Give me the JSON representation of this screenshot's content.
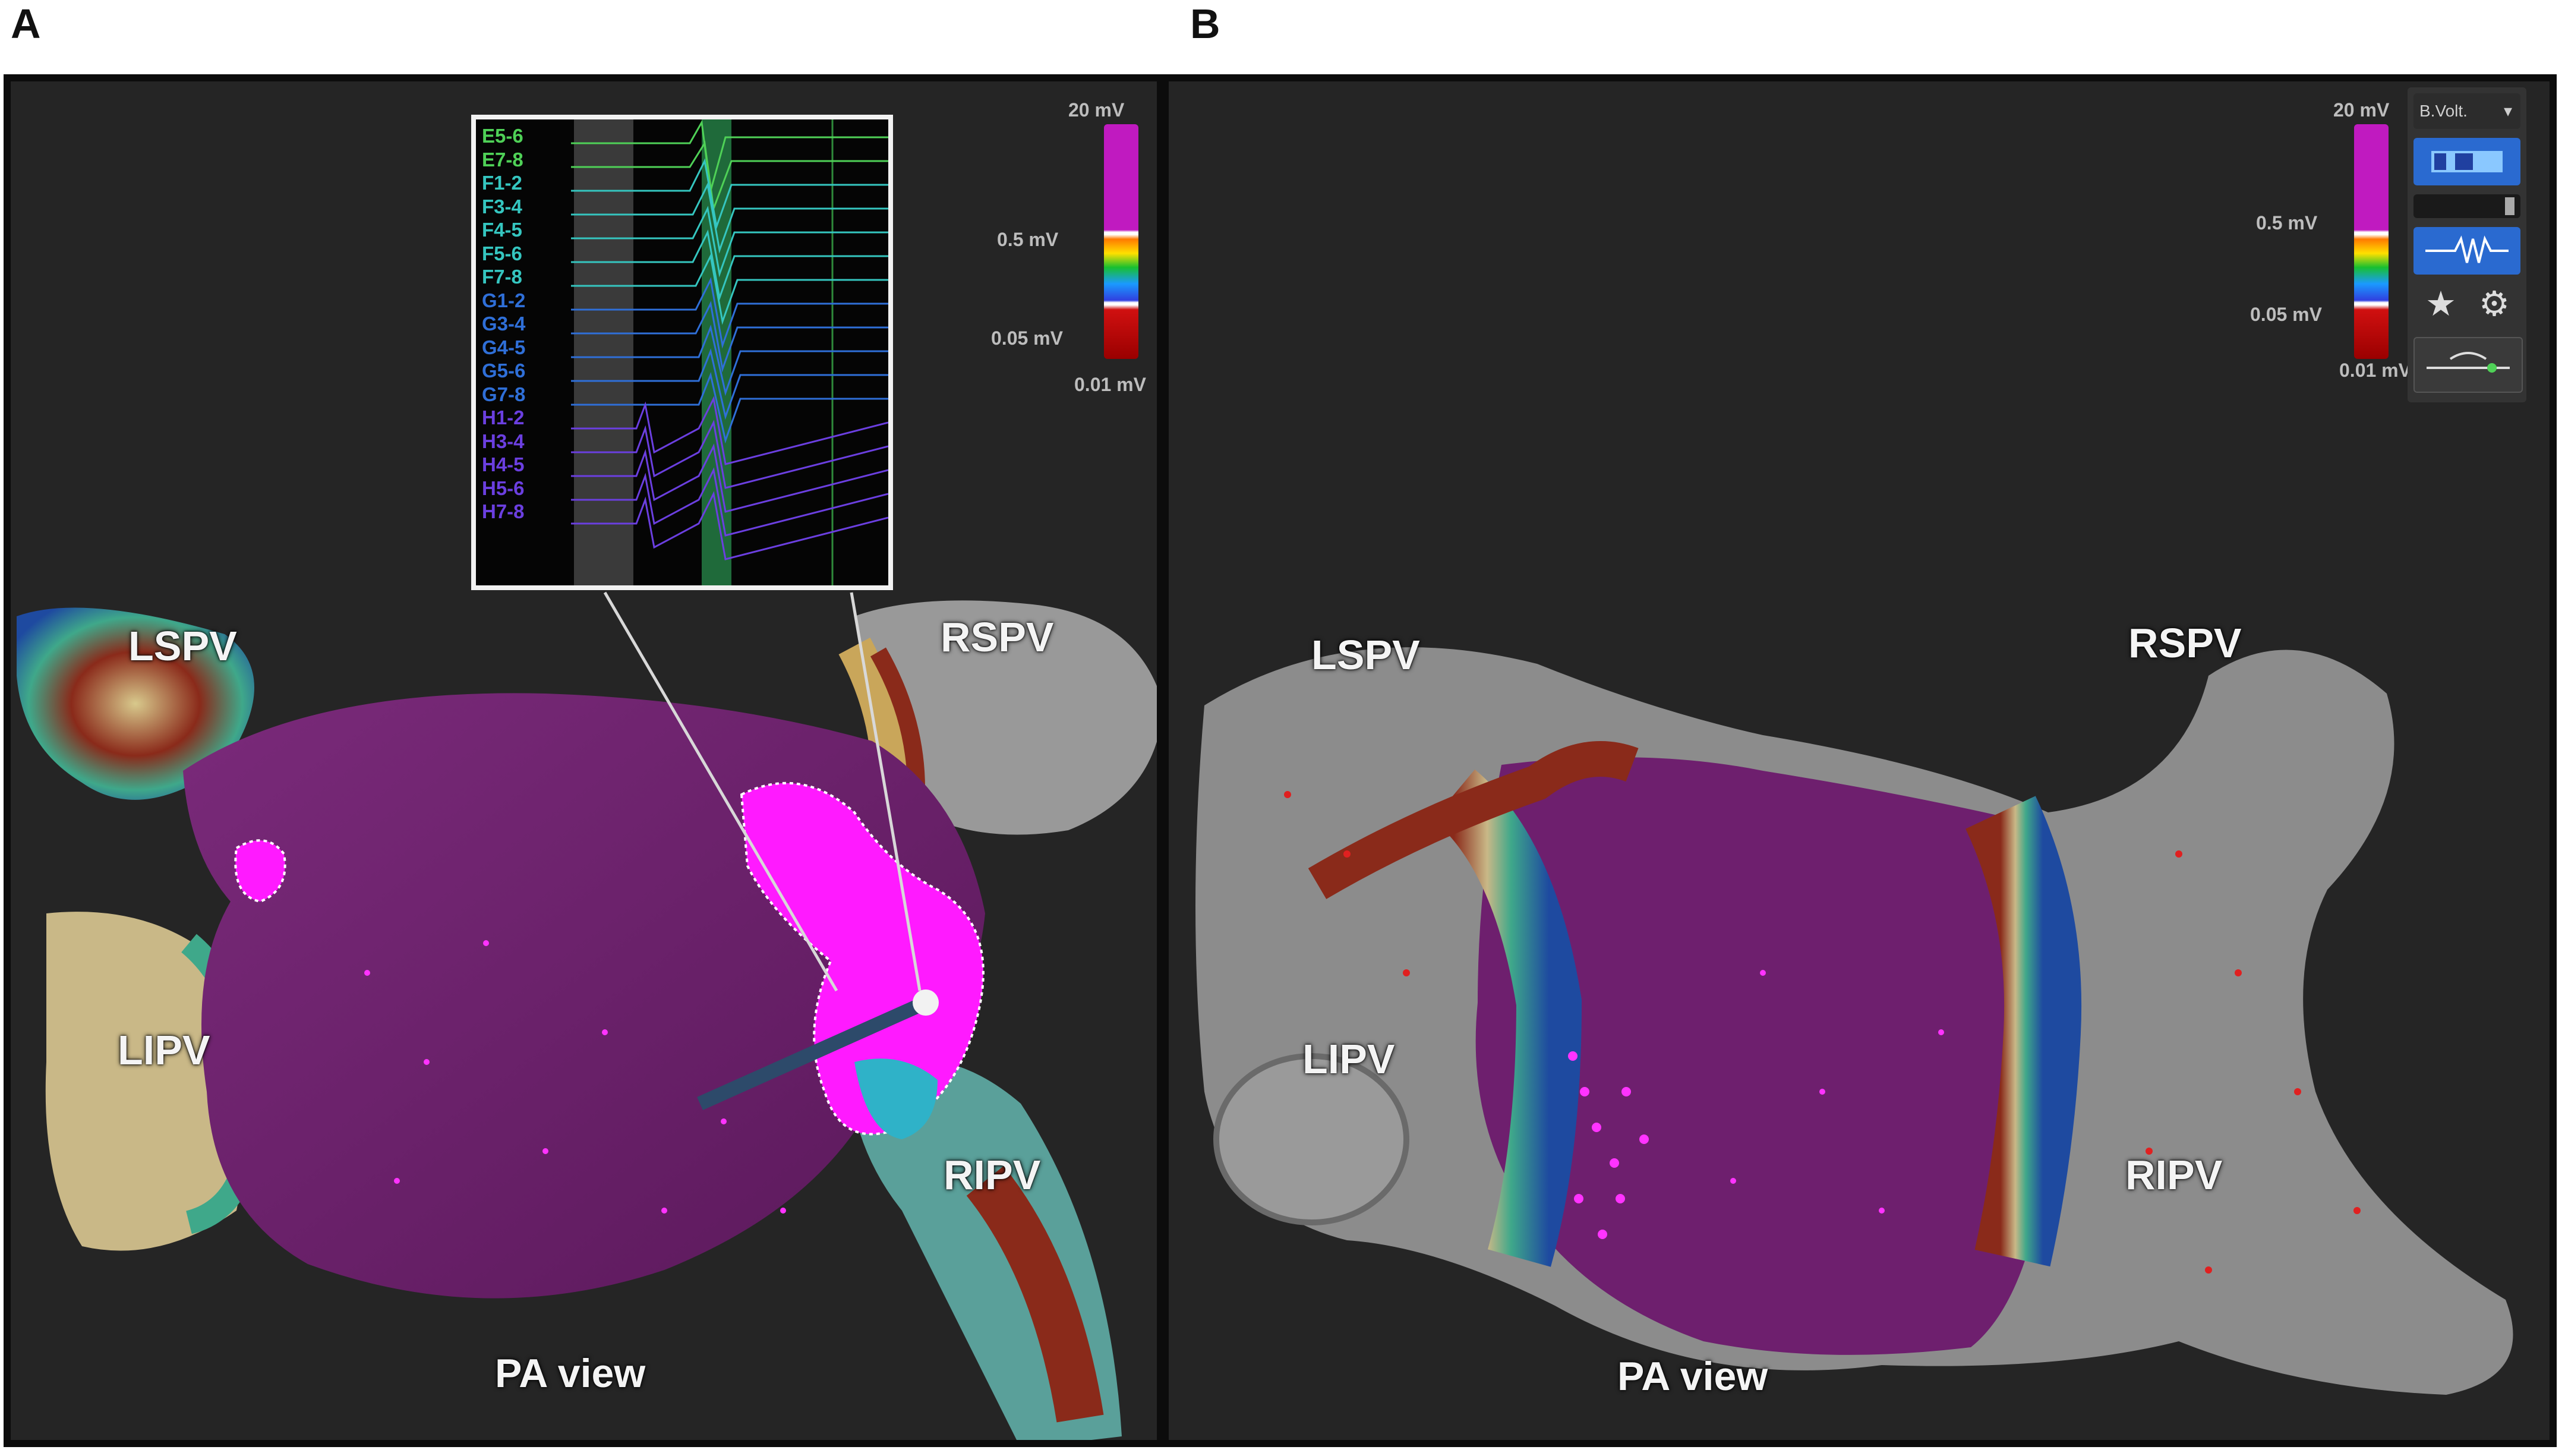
{
  "panels": [
    {
      "letter": "A",
      "view_label": "PA view",
      "veins": [
        "LSPV",
        "RSPV",
        "LIPV",
        "RIPV"
      ],
      "scale": {
        "top": "20 mV",
        "mid1": "0.5 mV",
        "mid2": "0.05 mV",
        "bottom": "0.01 mV"
      },
      "inset_channels": [
        {
          "name": "E5-6",
          "color": "#4fd157"
        },
        {
          "name": "E7-8",
          "color": "#4fd157"
        },
        {
          "name": "F1-2",
          "color": "#35c6c0"
        },
        {
          "name": "F3-4",
          "color": "#35c6c0"
        },
        {
          "name": "F4-5",
          "color": "#35c6c0"
        },
        {
          "name": "F5-6",
          "color": "#35c6c0"
        },
        {
          "name": "F7-8",
          "color": "#35c6c0"
        },
        {
          "name": "G1-2",
          "color": "#2f6fd8"
        },
        {
          "name": "G3-4",
          "color": "#2f6fd8"
        },
        {
          "name": "G4-5",
          "color": "#2f6fd8"
        },
        {
          "name": "G5-6",
          "color": "#2f6fd8"
        },
        {
          "name": "G7-8",
          "color": "#2f6fd8"
        },
        {
          "name": "H1-2",
          "color": "#6b3fe0"
        },
        {
          "name": "H3-4",
          "color": "#6b3fe0"
        },
        {
          "name": "H4-5",
          "color": "#6b3fe0"
        },
        {
          "name": "H5-6",
          "color": "#6b3fe0"
        },
        {
          "name": "H7-8",
          "color": "#6b3fe0"
        }
      ]
    },
    {
      "letter": "B",
      "view_label": "PA view",
      "veins": [
        "LSPV",
        "RSPV",
        "LIPV",
        "RIPV"
      ],
      "scale": {
        "top": "20 mV",
        "mid1": "0.5 mV",
        "mid2": "0.05 mV",
        "bottom": "0.01 mV"
      },
      "toolbar": {
        "dropdown": "B.Volt."
      }
    }
  ],
  "colors": {
    "healthy_tissue": "#6e1f6e",
    "scar_tissue": "#8a8a8a",
    "low_voltage_region": "#ff00ff",
    "background": "#252525"
  }
}
